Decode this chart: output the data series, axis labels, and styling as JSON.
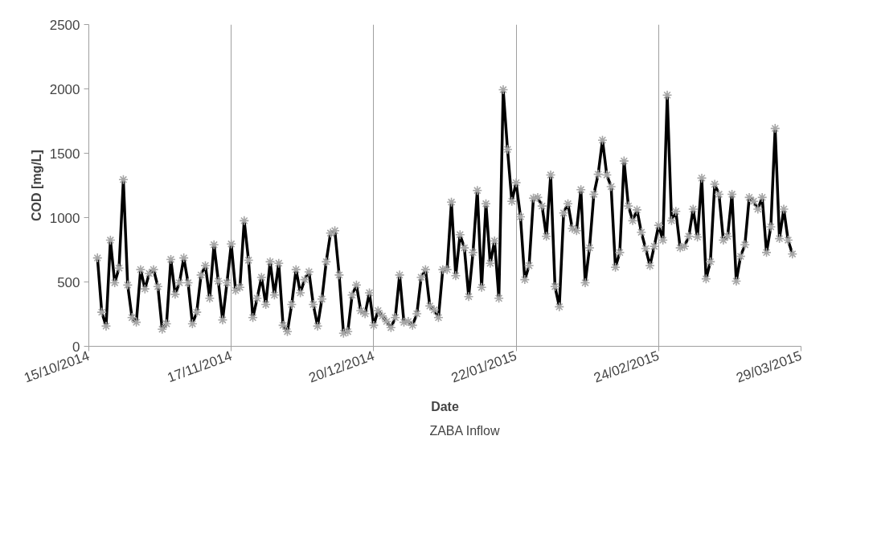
{
  "chart_data": {
    "type": "line",
    "xlabel": "Date",
    "ylabel": "COD [mg/L]",
    "x": [
      "2014-10-17",
      "2014-10-18",
      "2014-10-19",
      "2014-10-20",
      "2014-10-21",
      "2014-10-22",
      "2014-10-23",
      "2014-10-24",
      "2014-10-25",
      "2014-10-26",
      "2014-10-27",
      "2014-10-28",
      "2014-10-29",
      "2014-10-30",
      "2014-10-31",
      "2014-11-01",
      "2014-11-02",
      "2014-11-03",
      "2014-11-04",
      "2014-11-05",
      "2014-11-06",
      "2014-11-07",
      "2014-11-08",
      "2014-11-09",
      "2014-11-10",
      "2014-11-11",
      "2014-11-12",
      "2014-11-13",
      "2014-11-14",
      "2014-11-15",
      "2014-11-16",
      "2014-11-17",
      "2014-11-18",
      "2014-11-19",
      "2014-11-20",
      "2014-11-21",
      "2014-11-22",
      "2014-11-23",
      "2014-11-24",
      "2014-11-25",
      "2014-11-26",
      "2014-11-27",
      "2014-11-28",
      "2014-11-29",
      "2014-11-30",
      "2014-12-01",
      "2014-12-02",
      "2014-12-03",
      "2014-12-04",
      "2014-12-05",
      "2014-12-06",
      "2014-12-07",
      "2014-12-08",
      "2014-12-09",
      "2014-12-10",
      "2014-12-11",
      "2014-12-12",
      "2014-12-13",
      "2014-12-14",
      "2014-12-15",
      "2014-12-16",
      "2014-12-17",
      "2014-12-18",
      "2014-12-19",
      "2014-12-20",
      "2014-12-21",
      "2014-12-22",
      "2014-12-23",
      "2014-12-24",
      "2014-12-25",
      "2014-12-26",
      "2014-12-27",
      "2014-12-28",
      "2014-12-29",
      "2014-12-30",
      "2014-12-31",
      "2015-01-01",
      "2015-01-02",
      "2015-01-03",
      "2015-01-04",
      "2015-01-05",
      "2015-01-06",
      "2015-01-07",
      "2015-01-08",
      "2015-01-09",
      "2015-01-10",
      "2015-01-11",
      "2015-01-12",
      "2015-01-13",
      "2015-01-14",
      "2015-01-15",
      "2015-01-16",
      "2015-01-17",
      "2015-01-18",
      "2015-01-19",
      "2015-01-20",
      "2015-01-21",
      "2015-01-22",
      "2015-01-23",
      "2015-01-24",
      "2015-01-25",
      "2015-01-26",
      "2015-01-27",
      "2015-01-28",
      "2015-01-29",
      "2015-01-30",
      "2015-01-31",
      "2015-02-01",
      "2015-02-02",
      "2015-02-03",
      "2015-02-04",
      "2015-02-05",
      "2015-02-06",
      "2015-02-07",
      "2015-02-08",
      "2015-02-09",
      "2015-02-10",
      "2015-02-11",
      "2015-02-12",
      "2015-02-13",
      "2015-02-14",
      "2015-02-15",
      "2015-02-16",
      "2015-02-17",
      "2015-02-18",
      "2015-02-19",
      "2015-02-20",
      "2015-02-21",
      "2015-02-22",
      "2015-02-23",
      "2015-02-24",
      "2015-02-25",
      "2015-02-26",
      "2015-02-27",
      "2015-02-28",
      "2015-03-01",
      "2015-03-02",
      "2015-03-03",
      "2015-03-04",
      "2015-03-05",
      "2015-03-06",
      "2015-03-07",
      "2015-03-08",
      "2015-03-09",
      "2015-03-10",
      "2015-03-11",
      "2015-03-12",
      "2015-03-13",
      "2015-03-14",
      "2015-03-15",
      "2015-03-16",
      "2015-03-17",
      "2015-03-18",
      "2015-03-19",
      "2015-03-20",
      "2015-03-21",
      "2015-03-22",
      "2015-03-23",
      "2015-03-24",
      "2015-03-25",
      "2015-03-26",
      "2015-03-27"
    ],
    "series": [
      {
        "name": "ZABA Inflow",
        "color": "#000000",
        "values": [
          687,
          265,
          157,
          825,
          494,
          608,
          1295,
          476,
          223,
          187,
          596,
          446,
          566,
          596,
          464,
          133,
          175,
          675,
          404,
          494,
          687,
          494,
          175,
          265,
          554,
          627,
          373,
          789,
          506,
          205,
          494,
          795,
          434,
          458,
          976,
          669,
          223,
          373,
          536,
          325,
          657,
          398,
          645,
          163,
          114,
          325,
          596,
          416,
          518,
          578,
          325,
          157,
          367,
          657,
          880,
          898,
          554,
          102,
          114,
          398,
          476,
          277,
          253,
          416,
          163,
          277,
          235,
          193,
          145,
          223,
          554,
          187,
          193,
          163,
          253,
          536,
          596,
          313,
          283,
          223,
          596,
          596,
          1120,
          548,
          867,
          765,
          386,
          729,
          1211,
          458,
          1108,
          645,
          819,
          373,
          1994,
          1530,
          1127,
          1271,
          1006,
          518,
          627,
          1151,
          1157,
          1090,
          855,
          1331,
          464,
          307,
          1036,
          1108,
          916,
          898,
          1217,
          494,
          765,
          1181,
          1337,
          1602,
          1331,
          1241,
          614,
          729,
          1440,
          1090,
          976,
          1060,
          886,
          759,
          627,
          777,
          940,
          825,
          1952,
          976,
          1048,
          765,
          777,
          855,
          1066,
          849,
          1307,
          524,
          657,
          1259,
          1181,
          825,
          855,
          1181,
          506,
          699,
          789,
          1157,
          1127,
          1066,
          1157,
          729,
          928,
          1693,
          837,
          1066,
          825,
          717
        ]
      }
    ],
    "xlim": [
      "2014-10-15",
      "2015-03-29"
    ],
    "xticks": [
      {
        "value": "2014-10-15",
        "label": "15/10/2014"
      },
      {
        "value": "2014-11-17",
        "label": "17/11/2014"
      },
      {
        "value": "2014-12-20",
        "label": "20/12/2014"
      },
      {
        "value": "2015-01-22",
        "label": "22/01/2015"
      },
      {
        "value": "2015-02-24",
        "label": "24/02/2015"
      },
      {
        "value": "2015-03-29",
        "label": "29/03/2015"
      }
    ],
    "ylim": [
      0,
      2500
    ],
    "yticks": [
      0,
      500,
      1000,
      1500,
      2000,
      2500
    ],
    "grid": "x",
    "legend": "bottom",
    "marker": "cross",
    "line_style": "solid"
  }
}
